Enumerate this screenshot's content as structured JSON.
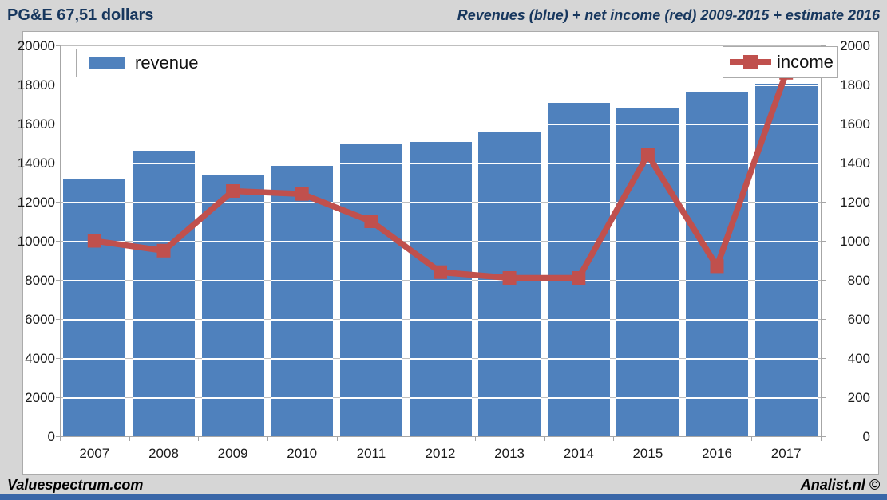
{
  "header": {
    "left_title": "PG&E 67,51 dollars",
    "right_title": "Revenues (blue) + net income (red) 2009-2015 + estimate 2016"
  },
  "footer": {
    "left": "Valuespectrum.com",
    "right": "Analist.nl ©"
  },
  "colors": {
    "bar_blue": "#4F81BD",
    "line_red": "#C0504D",
    "header_text": "#17375E",
    "page_background": "#D6D6D6",
    "plot_background": "#FFFFFF",
    "gridline": "#BFBFBF",
    "axis": "#A6A6A6",
    "bottom_strip": "#3A67A8"
  },
  "chart_data": {
    "type": "bar",
    "title": "Revenues (blue) + net income (red) 2009-2015 + estimate 2016",
    "categories": [
      "2007",
      "2008",
      "2009",
      "2010",
      "2011",
      "2012",
      "2013",
      "2014",
      "2015",
      "2016",
      "2017"
    ],
    "series": [
      {
        "name": "revenue",
        "type": "bar",
        "axis": "left",
        "color": "#4F81BD",
        "values": [
          13200,
          14600,
          13350,
          13850,
          14950,
          15050,
          15600,
          17050,
          16800,
          17650,
          18050
        ]
      },
      {
        "name": "income",
        "type": "line",
        "axis": "right",
        "color": "#C0504D",
        "values": [
          1000,
          950,
          1255,
          1240,
          1100,
          840,
          810,
          810,
          1440,
          870,
          1860
        ]
      }
    ],
    "left_axis": {
      "min": 0,
      "max": 20000,
      "step": 2000
    },
    "right_axis": {
      "min": 0,
      "max": 2000,
      "step": 200
    },
    "grid": true,
    "legend": [
      {
        "label": "revenue",
        "position": "top-left"
      },
      {
        "label": "income",
        "position": "top-right"
      }
    ]
  }
}
